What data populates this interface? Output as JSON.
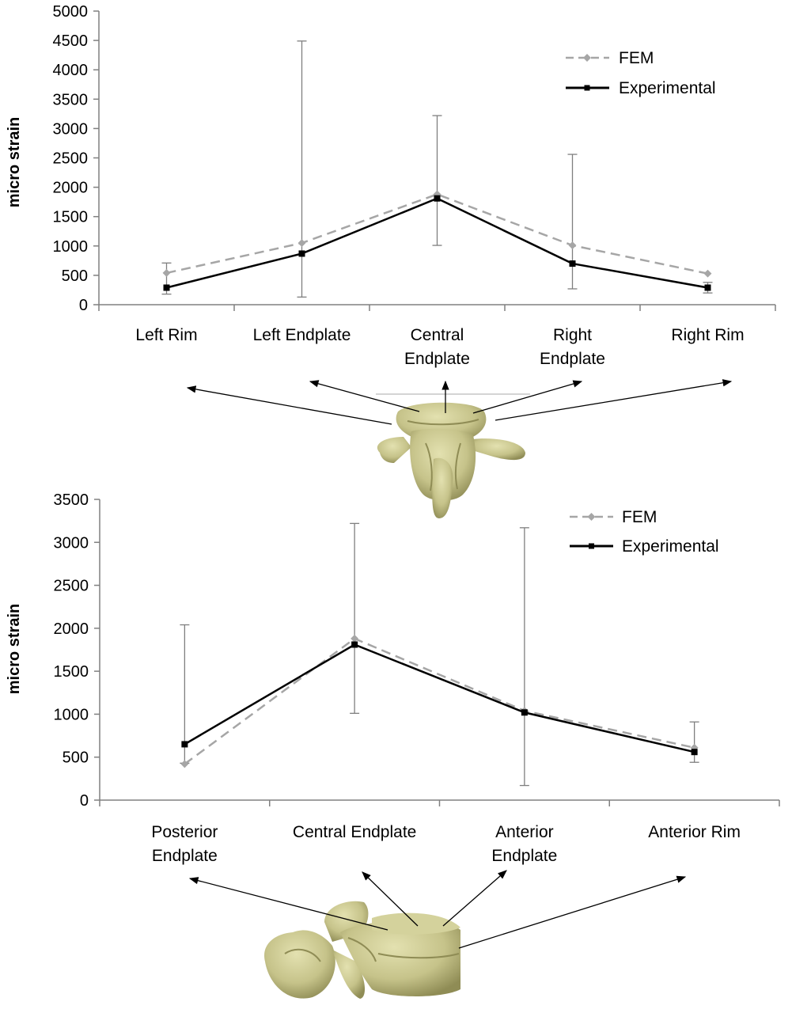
{
  "colors": {
    "fem": "#a6a6a6",
    "experimental": "#000000",
    "error_bar": "#7f7f7f",
    "axis": "#808080",
    "bone": "#c9c78f",
    "bone_shadow": "#8f8c55",
    "arrow": "#000000"
  },
  "chart_data": [
    {
      "type": "line",
      "categories": [
        [
          "Left Rim"
        ],
        [
          "Left Endplate"
        ],
        [
          "Central",
          "Endplate"
        ],
        [
          "Right",
          "Endplate"
        ],
        [
          "Right Rim"
        ]
      ],
      "ylabel": "micro strain",
      "xlabel": "",
      "title": "",
      "ylim": [
        0,
        5000
      ],
      "yticks": [
        0,
        500,
        1000,
        1500,
        2000,
        2500,
        3000,
        3500,
        4000,
        4500,
        5000
      ],
      "legend": "top-right",
      "series": [
        {
          "name": "FEM",
          "style": "dashed",
          "marker": "diamond",
          "values": [
            540,
            1050,
            1880,
            1010,
            530
          ]
        },
        {
          "name": "Experimental",
          "style": "solid",
          "marker": "square",
          "values": [
            290,
            870,
            1810,
            700,
            290
          ],
          "error_low": [
            180,
            130,
            1010,
            270,
            200
          ],
          "error_high": [
            710,
            4490,
            3220,
            2560,
            380
          ]
        }
      ]
    },
    {
      "type": "line",
      "categories": [
        [
          "Posterior",
          "Endplate"
        ],
        [
          "Central Endplate"
        ],
        [
          "Anterior",
          "Endplate"
        ],
        [
          "Anterior Rim"
        ]
      ],
      "ylabel": "micro strain",
      "xlabel": "",
      "title": "",
      "ylim": [
        0,
        3500
      ],
      "yticks": [
        0,
        500,
        1000,
        1500,
        2000,
        2500,
        3000,
        3500
      ],
      "legend": "top-right",
      "series": [
        {
          "name": "FEM",
          "style": "dashed",
          "marker": "diamond",
          "values": [
            420,
            1880,
            1040,
            610
          ]
        },
        {
          "name": "Experimental",
          "style": "solid",
          "marker": "square",
          "values": [
            650,
            1810,
            1020,
            560
          ],
          "error_low": [
            430,
            1010,
            170,
            440
          ],
          "error_high": [
            2040,
            3220,
            3170,
            910
          ]
        }
      ]
    }
  ]
}
